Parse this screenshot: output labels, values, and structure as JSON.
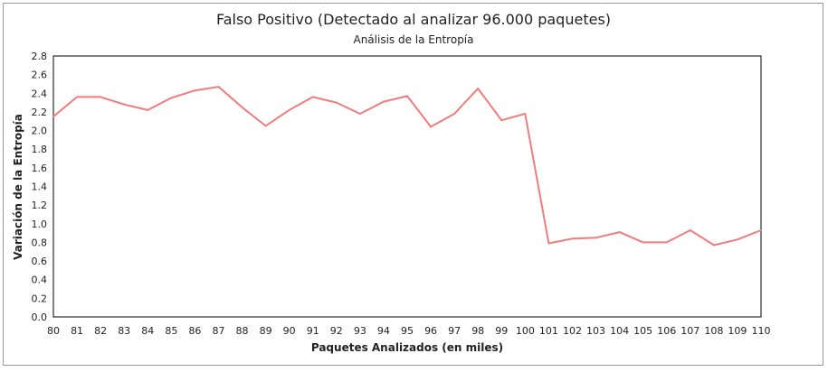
{
  "chart_data": {
    "type": "line",
    "title": "Falso Positivo (Detectado al analizar 96.000 paquetes)",
    "subtitle": "Análisis de la Entropía",
    "xlabel": "Paquetes Analizados (en miles)",
    "ylabel": "Variación de la Entropía",
    "xlim": [
      80,
      110
    ],
    "ylim": [
      0,
      2.8
    ],
    "x_ticks": [
      "80",
      "81",
      "82",
      "83",
      "84",
      "85",
      "86",
      "87",
      "88",
      "89",
      "90",
      "91",
      "92",
      "93",
      "94",
      "95",
      "96",
      "97",
      "98",
      "99",
      "100",
      "101",
      "102",
      "103",
      "104",
      "105",
      "106",
      "107",
      "108",
      "109",
      "110"
    ],
    "y_ticks": [
      "0.0",
      "0.2",
      "0.4",
      "0.6",
      "0.8",
      "1.0",
      "1.2",
      "1.4",
      "1.6",
      "1.8",
      "2.0",
      "2.2",
      "2.4",
      "2.6",
      "2.8"
    ],
    "grid": false,
    "series": [
      {
        "color": "#f07c7c",
        "x": [
          80,
          81,
          82,
          83,
          84,
          85,
          86,
          87,
          88,
          89,
          90,
          91,
          92,
          93,
          94,
          95,
          96,
          97,
          98,
          99,
          100,
          101,
          102,
          103,
          104,
          105,
          106,
          107,
          108,
          109,
          110
        ],
        "values": [
          2.15,
          2.36,
          2.36,
          2.28,
          2.22,
          2.35,
          2.43,
          2.47,
          2.25,
          2.05,
          2.22,
          2.36,
          2.3,
          2.18,
          2.31,
          2.37,
          2.04,
          2.18,
          2.45,
          2.11,
          2.18,
          0.79,
          0.84,
          0.85,
          0.91,
          0.8,
          0.8,
          0.93,
          0.77,
          0.83,
          0.93
        ]
      }
    ]
  }
}
